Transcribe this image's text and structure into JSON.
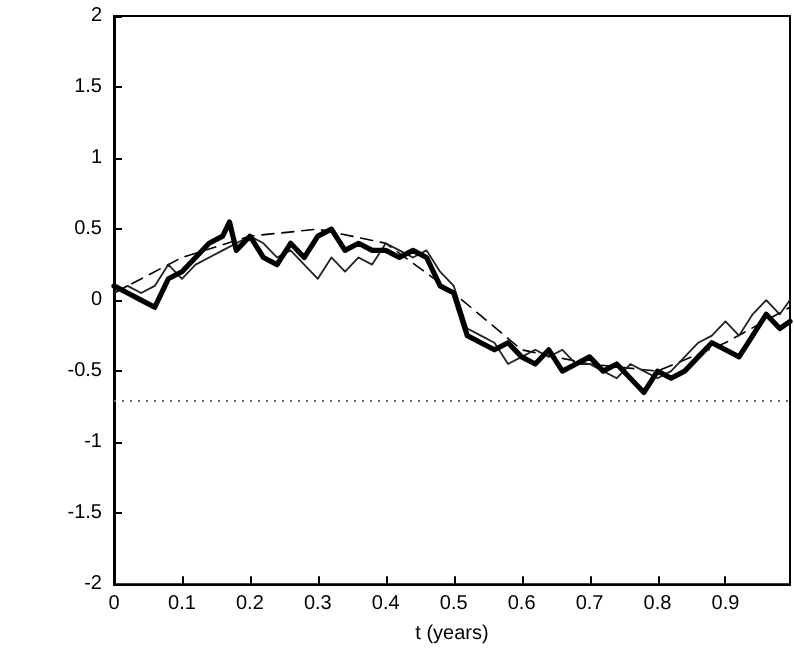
{
  "chart_data": {
    "type": "line",
    "xlabel": "t (years)",
    "xlim": [
      0,
      0.995
    ],
    "xticks": [
      0,
      0.1,
      0.2,
      0.3,
      0.4,
      0.5,
      0.6,
      0.7,
      0.8,
      0.9
    ],
    "ylim": [
      -2,
      2
    ],
    "yticks": [
      -2,
      -1.5,
      -1,
      -0.5,
      0,
      0.5,
      1,
      1.5,
      2
    ],
    "grid": false,
    "marker": "none",
    "series": [
      {
        "color": "#000000",
        "line_style": "solid",
        "x": [
          0,
          0.02,
          0.04,
          0.06,
          0.08,
          0.1,
          0.12,
          0.14,
          0.16,
          0.17,
          0.18,
          0.2,
          0.22,
          0.24,
          0.26,
          0.28,
          0.3,
          0.32,
          0.34,
          0.36,
          0.38,
          0.4,
          0.42,
          0.44,
          0.46,
          0.48,
          0.5,
          0.52,
          0.54,
          0.56,
          0.58,
          0.6,
          0.62,
          0.64,
          0.66,
          0.68,
          0.7,
          0.72,
          0.74,
          0.76,
          0.78,
          0.8,
          0.82,
          0.84,
          0.86,
          0.88,
          0.9,
          0.92,
          0.94,
          0.96,
          0.98,
          0.995
        ],
        "values": [
          0.1,
          0.05,
          0.0,
          -0.05,
          0.15,
          0.2,
          0.3,
          0.4,
          0.45,
          0.55,
          0.35,
          0.45,
          0.3,
          0.25,
          0.4,
          0.3,
          0.45,
          0.5,
          0.35,
          0.4,
          0.35,
          0.35,
          0.3,
          0.35,
          0.3,
          0.1,
          0.05,
          -0.25,
          -0.3,
          -0.35,
          -0.3,
          -0.4,
          -0.45,
          -0.35,
          -0.5,
          -0.45,
          -0.4,
          -0.5,
          -0.45,
          -0.55,
          -0.65,
          -0.5,
          -0.55,
          -0.5,
          -0.4,
          -0.3,
          -0.35,
          -0.4,
          -0.25,
          -0.1,
          -0.2,
          -0.15
        ]
      },
      {
        "color": "#222222",
        "line_style": "solid",
        "x": [
          0,
          0.02,
          0.04,
          0.06,
          0.08,
          0.1,
          0.12,
          0.14,
          0.16,
          0.18,
          0.2,
          0.22,
          0.24,
          0.26,
          0.28,
          0.3,
          0.32,
          0.34,
          0.36,
          0.38,
          0.4,
          0.42,
          0.44,
          0.46,
          0.48,
          0.5,
          0.52,
          0.54,
          0.56,
          0.58,
          0.6,
          0.62,
          0.64,
          0.66,
          0.68,
          0.7,
          0.72,
          0.74,
          0.76,
          0.78,
          0.8,
          0.82,
          0.84,
          0.86,
          0.88,
          0.9,
          0.92,
          0.94,
          0.96,
          0.98,
          0.995
        ],
        "values": [
          0.05,
          0.1,
          0.05,
          0.1,
          0.25,
          0.15,
          0.25,
          0.3,
          0.35,
          0.4,
          0.45,
          0.4,
          0.3,
          0.35,
          0.25,
          0.15,
          0.3,
          0.2,
          0.3,
          0.25,
          0.4,
          0.35,
          0.3,
          0.35,
          0.2,
          0.1,
          -0.2,
          -0.25,
          -0.3,
          -0.45,
          -0.4,
          -0.35,
          -0.4,
          -0.35,
          -0.45,
          -0.45,
          -0.5,
          -0.55,
          -0.45,
          -0.5,
          -0.55,
          -0.5,
          -0.4,
          -0.3,
          -0.25,
          -0.15,
          -0.25,
          -0.1,
          0.0,
          -0.1,
          0.0
        ]
      },
      {
        "color": "#000000",
        "line_style": "dashed",
        "x": [
          0,
          0.1,
          0.2,
          0.3,
          0.4,
          0.5,
          0.6,
          0.7,
          0.8,
          0.9,
          0.995
        ],
        "values": [
          0.05,
          0.3,
          0.45,
          0.5,
          0.4,
          0.05,
          -0.35,
          -0.45,
          -0.5,
          -0.3,
          -0.05
        ]
      }
    ],
    "ref_lines": [
      {
        "axis": "y",
        "value": -0.7,
        "color": "#666666",
        "line_style": "dotted"
      }
    ]
  }
}
